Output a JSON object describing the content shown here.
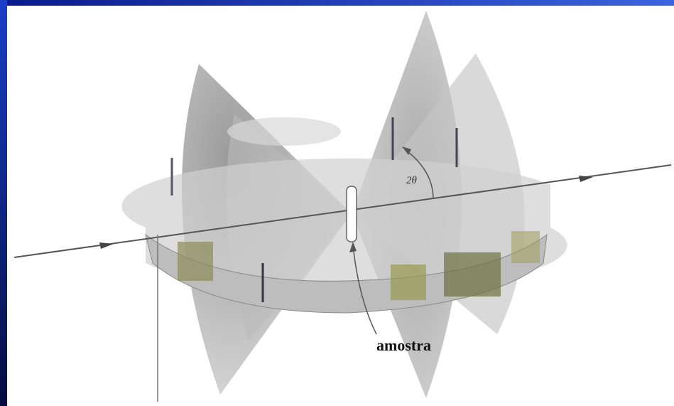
{
  "labels": {
    "sample": "amostra",
    "angle": "2θ"
  }
}
